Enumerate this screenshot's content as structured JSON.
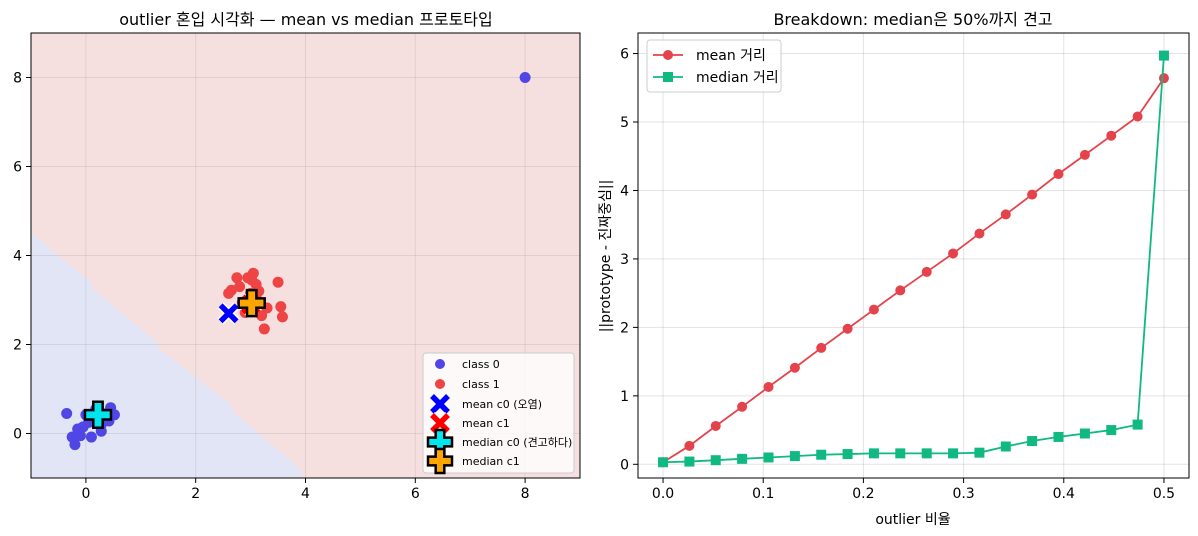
{
  "chart_data": [
    {
      "type": "scatter",
      "title": "outlier 혼입 시각화 — mean vs median 프로토타입",
      "xlabel": "",
      "ylabel": "",
      "xlim": [
        -1,
        9
      ],
      "ylim": [
        -1,
        9
      ],
      "xticks": [
        0,
        2,
        4,
        6,
        8
      ],
      "yticks": [
        0,
        2,
        4,
        6,
        8
      ],
      "grid": true,
      "legend_position": "lower right",
      "background_regions": [
        {
          "name": "class 0 region",
          "color": "#e2e5f6"
        },
        {
          "name": "class 1 region",
          "color": "#f6e0df"
        }
      ],
      "series": [
        {
          "name": "class 0",
          "color": "#4f46e5",
          "marker": "circle",
          "points": [
            [
              -0.35,
              0.45
            ],
            [
              -0.25,
              -0.08
            ],
            [
              -0.2,
              -0.25
            ],
            [
              -0.15,
              0.1
            ],
            [
              -0.1,
              -0.05
            ],
            [
              -0.05,
              0.15
            ],
            [
              0.0,
              0.42
            ],
            [
              0.05,
              0.25
            ],
            [
              0.1,
              -0.08
            ],
            [
              0.12,
              0.3
            ],
            [
              0.18,
              0.55
            ],
            [
              0.22,
              0.38
            ],
            [
              0.28,
              0.05
            ],
            [
              0.32,
              0.35
            ],
            [
              0.38,
              0.45
            ],
            [
              0.42,
              0.28
            ],
            [
              0.45,
              0.58
            ],
            [
              0.52,
              0.42
            ],
            [
              0.28,
              0.2
            ],
            [
              8.0,
              8.0
            ]
          ]
        },
        {
          "name": "class 1",
          "color": "#ef4444",
          "marker": "circle",
          "points": [
            [
              2.6,
              3.15
            ],
            [
              2.65,
              3.22
            ],
            [
              2.75,
              3.5
            ],
            [
              2.8,
              3.3
            ],
            [
              2.85,
              2.95
            ],
            [
              2.9,
              2.72
            ],
            [
              2.95,
              3.5
            ],
            [
              3.0,
              3.15
            ],
            [
              3.02,
              3.45
            ],
            [
              3.05,
              3.6
            ],
            [
              3.1,
              3.05
            ],
            [
              3.15,
              3.2
            ],
            [
              3.2,
              2.65
            ],
            [
              3.25,
              2.35
            ],
            [
              3.3,
              2.82
            ],
            [
              3.5,
              3.4
            ],
            [
              3.55,
              2.85
            ],
            [
              3.58,
              2.62
            ],
            [
              2.95,
              2.85
            ],
            [
              3.1,
              3.35
            ]
          ]
        },
        {
          "name": "mean c0 (오염)",
          "color": "#0000ff",
          "marker": "x",
          "points": [
            [
              2.6,
              2.7
            ]
          ]
        },
        {
          "name": "mean c1",
          "color": "#ff0000",
          "marker": "x",
          "points": [
            [
              3.0,
              2.9
            ]
          ]
        },
        {
          "name": "median c0 (견고하다)",
          "color": "#00e5ee",
          "marker": "plus",
          "points": [
            [
              0.22,
              0.42
            ]
          ]
        },
        {
          "name": "median c1",
          "color": "#ffa500",
          "marker": "plus",
          "points": [
            [
              3.02,
              2.93
            ]
          ]
        }
      ]
    },
    {
      "type": "line",
      "title": "Breakdown: median은 50%까지 견고",
      "xlabel": "outlier 비율",
      "ylabel": "||prototype - 진짜중심||",
      "xlim": [
        -0.025,
        0.525
      ],
      "ylim": [
        -0.2,
        6.3
      ],
      "xticks": [
        0.0,
        0.1,
        0.2,
        0.3,
        0.4,
        0.5
      ],
      "yticks": [
        0,
        1,
        2,
        3,
        4,
        5,
        6
      ],
      "grid": true,
      "legend_position": "upper left",
      "x": [
        0.0,
        0.0263,
        0.0526,
        0.0789,
        0.1053,
        0.1316,
        0.1579,
        0.1842,
        0.2105,
        0.2368,
        0.2632,
        0.2895,
        0.3158,
        0.3421,
        0.3684,
        0.3947,
        0.4211,
        0.4474,
        0.4737,
        0.5
      ],
      "series": [
        {
          "name": "mean 거리",
          "color": "#e5434b",
          "marker": "circle",
          "values": [
            0.03,
            0.27,
            0.56,
            0.84,
            1.13,
            1.41,
            1.7,
            1.98,
            2.26,
            2.54,
            2.81,
            3.08,
            3.37,
            3.65,
            3.94,
            4.24,
            4.52,
            4.8,
            5.08,
            5.64
          ]
        },
        {
          "name": "median 거리",
          "color": "#10b981",
          "marker": "square",
          "values": [
            0.03,
            0.04,
            0.06,
            0.08,
            0.1,
            0.12,
            0.14,
            0.15,
            0.16,
            0.16,
            0.16,
            0.16,
            0.17,
            0.26,
            0.34,
            0.4,
            0.45,
            0.5,
            0.58,
            5.97
          ]
        }
      ]
    }
  ]
}
